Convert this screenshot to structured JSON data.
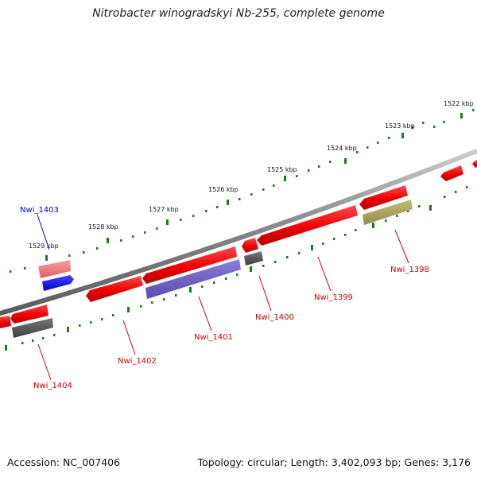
{
  "title": "Nitrobacter winogradskyi Nb-255, complete genome",
  "footer": {
    "accession": "Accession: NC_007406",
    "summary": "Topology: circular; Length: 3,402,093 bp; Genes: 3,176"
  },
  "scale_labels": [
    "1522 kbp",
    "1523 kbp",
    "1524 kbp",
    "1525 kbp",
    "1526 kbp",
    "1527 kbp",
    "1528 kbp",
    "1529 kbp"
  ],
  "gene_labels": [
    "Nwi_1398",
    "Nwi_1399",
    "Nwi_1400",
    "Nwi_1401",
    "Nwi_1402",
    "Nwi_1403",
    "Nwi_1404"
  ],
  "colors": {
    "cds": "#ff0000",
    "cds_light": "#f07878",
    "highlight": "#0000ff",
    "purple": "#7766cc",
    "gray": "#555555",
    "olive": "#aaa055",
    "backbone": "#777777",
    "tick": "#1e7a1e",
    "label_red": "#cc0000",
    "label_blue": "#0000cc"
  }
}
